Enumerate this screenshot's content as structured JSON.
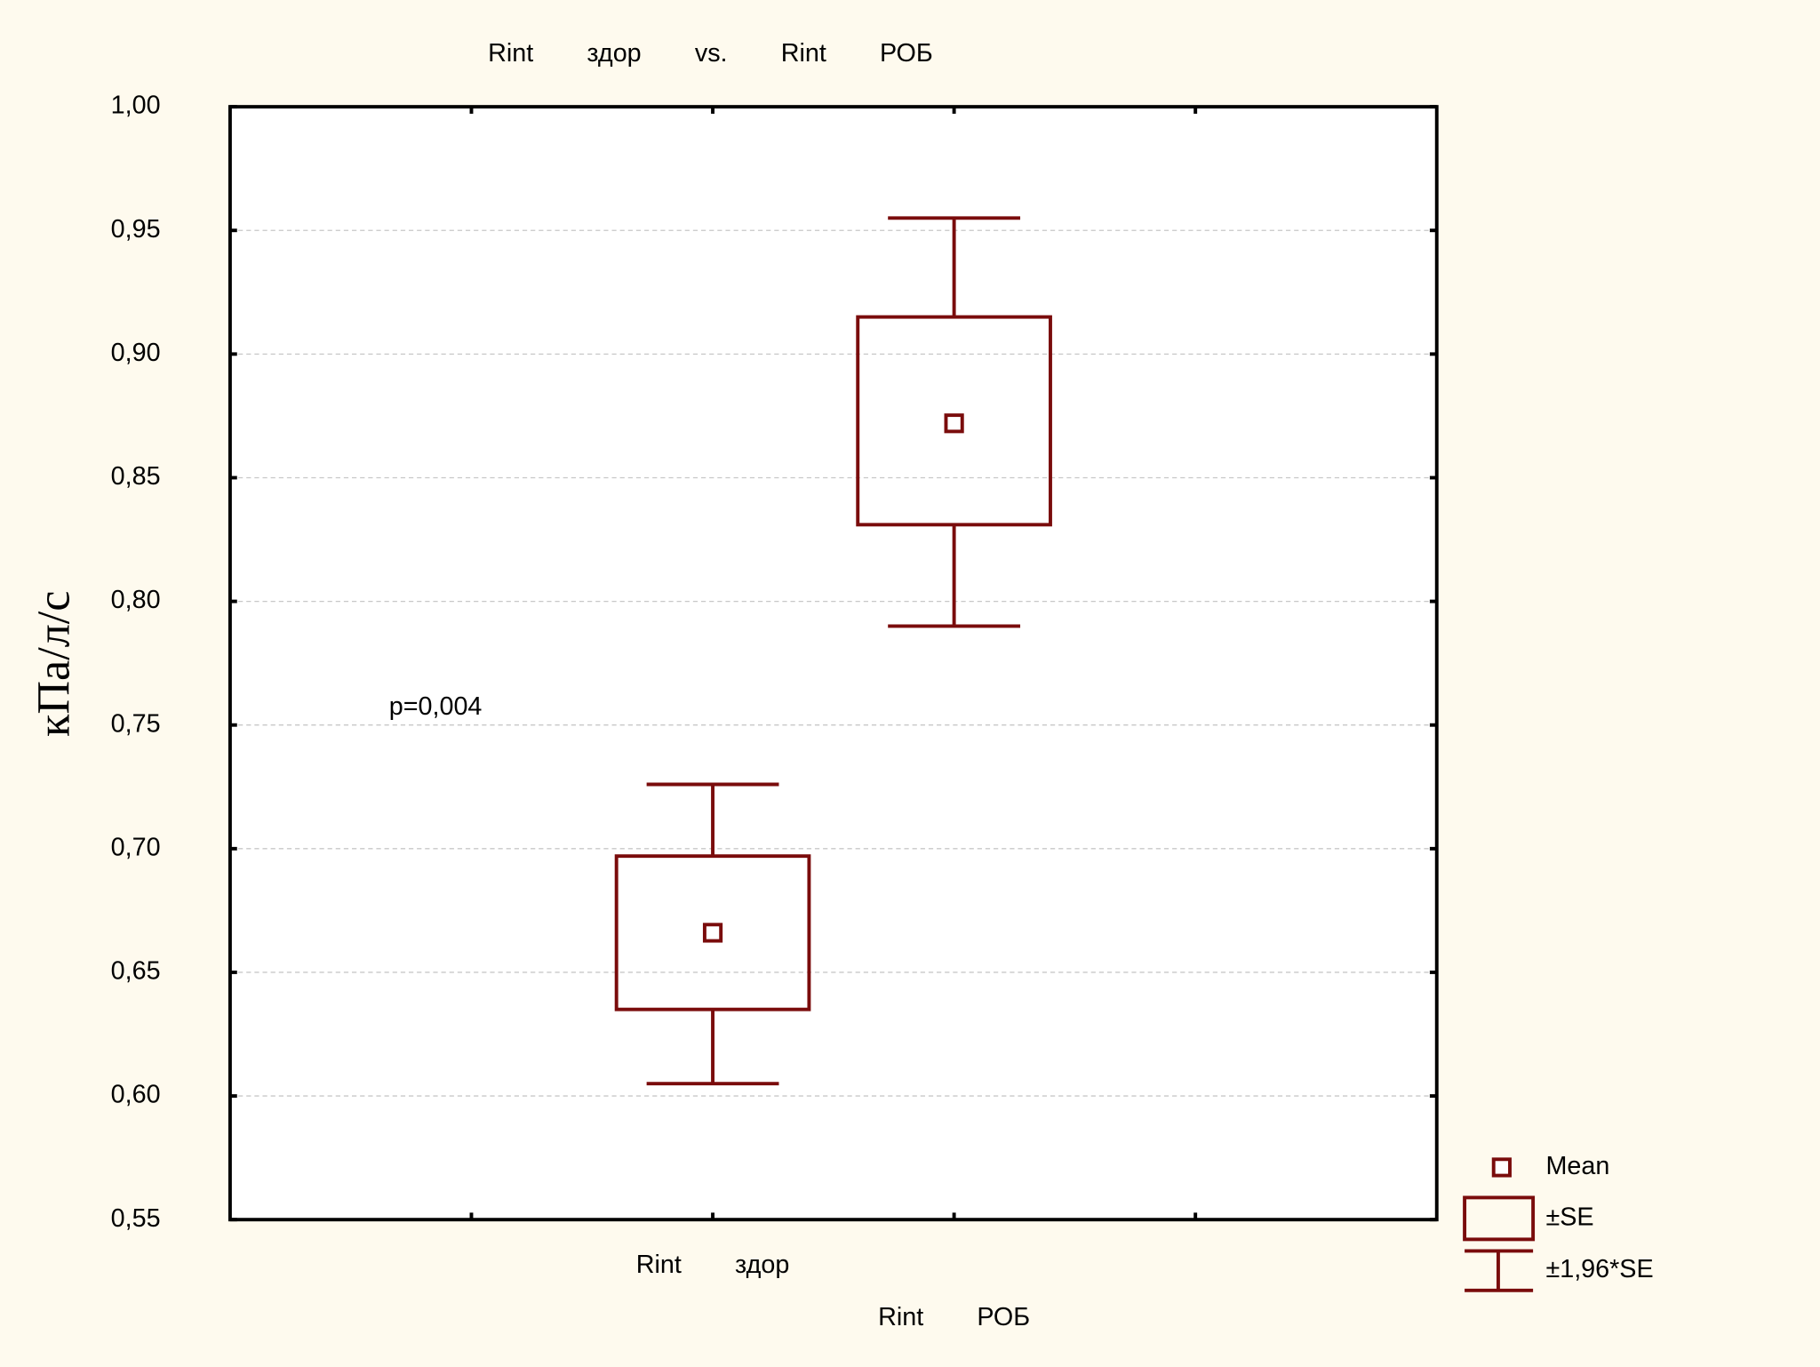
{
  "chart_data": {
    "type": "box",
    "title": "Rint здор vs. Rint РОБ",
    "y_label": "кПа/л/с",
    "annotation": "p=0,004",
    "categories": [
      "Rint здор",
      "Rint РОБ"
    ],
    "color": "#7a0c0c",
    "boxes": [
      {
        "mean": 0.666,
        "box_low": 0.635,
        "box_high": 0.697,
        "whisker_low": 0.605,
        "whisker_high": 0.726
      },
      {
        "mean": 0.872,
        "box_low": 0.831,
        "box_high": 0.915,
        "whisker_low": 0.79,
        "whisker_high": 0.955
      }
    ],
    "legend": [
      "Mean",
      "±SE",
      "±1,96*SE"
    ],
    "ylim": [
      0.55,
      1.0
    ],
    "yticks": [
      {
        "value": 0.55,
        "label": "0,55"
      },
      {
        "value": 0.6,
        "label": "0,60"
      },
      {
        "value": 0.65,
        "label": "0,65"
      },
      {
        "value": 0.7,
        "label": "0,70"
      },
      {
        "value": 0.75,
        "label": "0,75"
      },
      {
        "value": 0.8,
        "label": "0,80"
      },
      {
        "value": 0.85,
        "label": "0,85"
      },
      {
        "value": 0.9,
        "label": "0,90"
      },
      {
        "value": 0.95,
        "label": "0,95"
      },
      {
        "value": 1.0,
        "label": "1,00"
      }
    ],
    "grid": true
  }
}
